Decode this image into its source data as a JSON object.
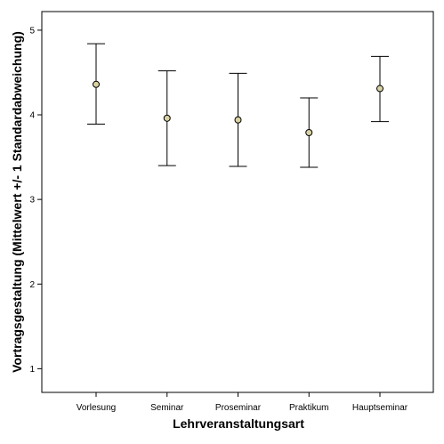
{
  "chart_data": {
    "type": "errorbar",
    "xlabel": "Lehrveranstaltungsart",
    "ylabel": "Vortragsgestaltung (Mittelwert +/- 1 Standardabweichung)",
    "categories": [
      "Vorlesung",
      "Seminar",
      "Proseminar",
      "Praktikum",
      "Hauptseminar"
    ],
    "series": [
      {
        "mean": [
          4.36,
          3.96,
          3.94,
          3.79,
          4.31
        ],
        "lower": [
          3.89,
          3.4,
          3.39,
          3.38,
          3.92
        ],
        "upper": [
          4.84,
          4.52,
          4.49,
          4.2,
          4.69
        ]
      }
    ],
    "ylim": [
      0.72,
      5.22
    ],
    "yticks": [
      1,
      2,
      3,
      4,
      5
    ],
    "grid": false,
    "legend": "none",
    "colors": {
      "marker_fill": "#d9d2a4",
      "line": "#000000"
    }
  }
}
